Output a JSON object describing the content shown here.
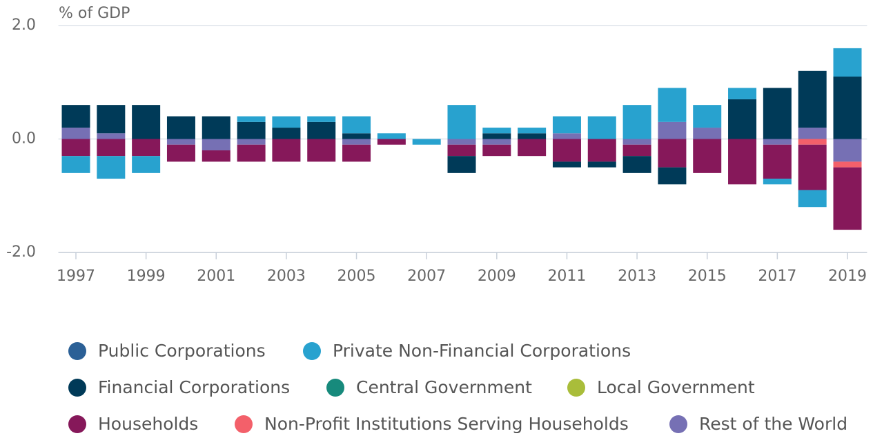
{
  "chart_data": {
    "type": "stacked_bar",
    "y_axis_label": "% of GDP",
    "categories": [
      "1997",
      null,
      "1999",
      null,
      "2001",
      null,
      "2003",
      null,
      "2005",
      null,
      "2007",
      null,
      "2009",
      null,
      "2011",
      null,
      "2013",
      null,
      "2015",
      null,
      "2017",
      null,
      "2019"
    ],
    "ylim": [
      -2,
      2
    ],
    "yticks": [
      {
        "value": 2,
        "label": "2.0"
      },
      {
        "value": 0,
        "label": "0.0"
      },
      {
        "value": -2,
        "label": "-2.0"
      }
    ],
    "grid": true,
    "legend": "bottom",
    "series": [
      {
        "name": "Public Corporations",
        "color": "#2b6096",
        "values": [
          0,
          0,
          0,
          0,
          0,
          0,
          0,
          0,
          0,
          0,
          0,
          0,
          0,
          0,
          0,
          0,
          0,
          0,
          0,
          0,
          0,
          0,
          0
        ]
      },
      {
        "name": "Private Non-Financial Corporations",
        "color": "#28a2cf",
        "values": [
          -0.3,
          -0.4,
          -0.3,
          0,
          0,
          0.1,
          0.2,
          0.1,
          0.3,
          0.1,
          -0.1,
          0.6,
          0.1,
          0.1,
          0.3,
          0.4,
          0.6,
          0.6,
          0.4,
          0.2,
          -0.1,
          -0.3,
          0.5
        ]
      },
      {
        "name": "Financial Corporations",
        "color": "#003a58",
        "values": [
          0.4,
          0.5,
          0.6,
          0.4,
          0.4,
          0.3,
          0.2,
          0.3,
          0.1,
          0,
          0,
          -0.3,
          0.1,
          0.1,
          -0.1,
          -0.1,
          -0.3,
          -0.3,
          0,
          0.7,
          0.9,
          1.0,
          1.1
        ]
      },
      {
        "name": "Central Government",
        "color": "#178a7c",
        "values": [
          0,
          0,
          0,
          0,
          0,
          0,
          0,
          0,
          0,
          0,
          0,
          0,
          0,
          0,
          0,
          0,
          0,
          0,
          0,
          0,
          0,
          0,
          0
        ]
      },
      {
        "name": "Local Government",
        "color": "#a9bd3a",
        "values": [
          0,
          0,
          0,
          0,
          0,
          0,
          0,
          0,
          0,
          0,
          0,
          0,
          0,
          0,
          0,
          0,
          0,
          0,
          0,
          0,
          0,
          0,
          0
        ]
      },
      {
        "name": "Households",
        "color": "#86185a",
        "values": [
          -0.3,
          -0.3,
          -0.3,
          -0.3,
          -0.2,
          -0.3,
          -0.4,
          -0.4,
          -0.3,
          -0.1,
          0,
          -0.2,
          -0.2,
          -0.3,
          -0.4,
          -0.4,
          -0.2,
          -0.5,
          -0.6,
          -0.8,
          -0.6,
          -0.8,
          -1.1
        ]
      },
      {
        "name": "Non-Profit Institutions Serving Households",
        "color": "#f3606a",
        "values": [
          0,
          0,
          0,
          0,
          0,
          0,
          0,
          0,
          0,
          0,
          0,
          0,
          0,
          0,
          0,
          0,
          0,
          0,
          0,
          0,
          0,
          -0.1,
          -0.1
        ]
      },
      {
        "name": "Rest of the World",
        "color": "#7670b4",
        "values": [
          0.2,
          0.1,
          0,
          -0.1,
          -0.2,
          -0.1,
          0,
          0,
          -0.1,
          0,
          0,
          -0.1,
          -0.1,
          0,
          0.1,
          0,
          -0.1,
          0.3,
          0.2,
          0,
          -0.1,
          0.2,
          -0.4
        ]
      }
    ]
  }
}
